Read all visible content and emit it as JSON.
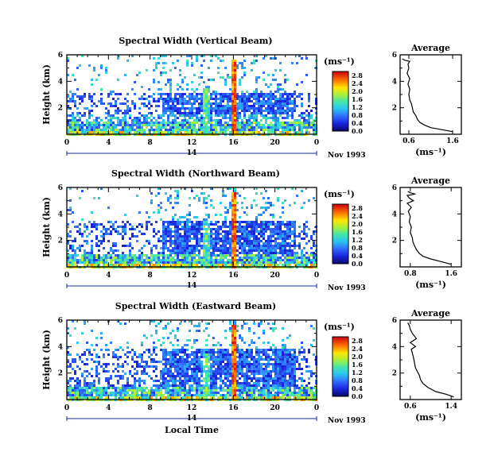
{
  "chart_data": [
    {
      "type": "heatmap",
      "title": "Spectral Width (Vertical Beam)",
      "ylabel": "Height (km)",
      "xlim": [
        0,
        24
      ],
      "ylim": [
        0,
        6
      ],
      "x_ticks": [
        "0",
        "4",
        "8",
        "12",
        "16",
        "20",
        "0"
      ],
      "y_ticks": [
        "2",
        "4",
        "6"
      ],
      "date_day": "14",
      "date_label": "Nov 1993",
      "colorbar": {
        "unit": "(ms⁻¹)",
        "ticks": [
          "0.0",
          "0.4",
          "0.8",
          "1.2",
          "1.6",
          "2.0",
          "2.4",
          "2.8"
        ],
        "range": [
          0.0,
          3.0
        ]
      },
      "features": {
        "spike_time_hr": 15.9,
        "noise_top_km": 1.1,
        "cloud_band_km": [
          1.6,
          3.2
        ]
      }
    },
    {
      "type": "heatmap",
      "title": "Spectral Width (Northward Beam)",
      "ylabel": "Height (km)",
      "xlim": [
        0,
        24
      ],
      "ylim": [
        0,
        6
      ],
      "x_ticks": [
        "0",
        "4",
        "8",
        "12",
        "16",
        "20",
        "0"
      ],
      "y_ticks": [
        "2",
        "4",
        "6"
      ],
      "date_day": "14",
      "date_label": "Nov 1993",
      "colorbar": {
        "unit": "(ms⁻¹)",
        "ticks": [
          "0.0",
          "0.4",
          "0.8",
          "1.2",
          "1.6",
          "2.0",
          "2.4",
          "2.8"
        ],
        "range": [
          0.0,
          3.0
        ]
      },
      "features": {
        "spike_time_hr": 15.9,
        "noise_top_km": 1.0,
        "cloud_band_km": [
          0.6,
          3.6
        ]
      }
    },
    {
      "type": "heatmap",
      "title": "Spectral Width (Eastward Beam)",
      "ylabel": "Height (km)",
      "xlabel": "Local Time",
      "xlim": [
        0,
        24
      ],
      "ylim": [
        0,
        6
      ],
      "x_ticks": [
        "0",
        "4",
        "8",
        "12",
        "16",
        "20",
        "0"
      ],
      "y_ticks": [
        "2",
        "4",
        "6"
      ],
      "date_day": "14",
      "date_label": "Nov 1993",
      "colorbar": {
        "unit": "(ms⁻¹)",
        "ticks": [
          "0.0",
          "0.4",
          "0.8",
          "1.2",
          "1.6",
          "2.0",
          "2.4",
          "2.8"
        ],
        "range": [
          0.0,
          3.0
        ]
      },
      "features": {
        "spike_time_hr": 15.9,
        "noise_top_km": 1.0,
        "cloud_band_km": [
          0.6,
          3.9
        ]
      }
    },
    {
      "type": "line",
      "title": "Average",
      "xlabel": "(ms⁻¹)",
      "x_ticks": [
        "0.6",
        "1.6"
      ],
      "xlim": [
        0.4,
        1.8
      ],
      "y_ticks": [
        "2",
        "4",
        "6"
      ],
      "ylim": [
        0,
        6
      ],
      "series": [
        {
          "width": [
            1.6,
            1.35,
            1.1,
            0.95,
            0.85,
            0.8,
            0.76,
            0.7,
            0.68,
            0.66,
            0.62,
            0.6,
            0.62,
            0.58,
            0.62,
            0.56,
            0.6,
            0.58,
            0.62,
            0.5,
            0.45
          ],
          "height": [
            0.2,
            0.35,
            0.5,
            0.7,
            0.9,
            1.1,
            1.4,
            1.7,
            2.0,
            2.3,
            2.6,
            3.0,
            3.4,
            3.8,
            4.2,
            4.6,
            5.0,
            5.3,
            5.5,
            5.6,
            5.7
          ]
        }
      ]
    },
    {
      "type": "line",
      "title": "Average",
      "xlabel": "(ms⁻¹)",
      "x_ticks": [
        "0.8",
        "1.6"
      ],
      "xlim": [
        0.6,
        1.8
      ],
      "y_ticks": [
        "2",
        "4",
        "6"
      ],
      "ylim": [
        0,
        6
      ],
      "series": [
        {
          "width": [
            1.6,
            1.4,
            1.2,
            1.05,
            0.98,
            0.92,
            0.88,
            0.85,
            0.84,
            0.8,
            0.82,
            0.78,
            0.8,
            0.76,
            0.82,
            0.74,
            0.86,
            0.78,
            0.74,
            0.9,
            0.8,
            0.75
          ],
          "height": [
            0.2,
            0.4,
            0.6,
            0.8,
            1.0,
            1.3,
            1.6,
            1.9,
            2.2,
            2.6,
            3.0,
            3.4,
            3.8,
            4.2,
            4.5,
            4.8,
            5.0,
            5.2,
            5.4,
            5.5,
            5.6,
            5.7
          ]
        }
      ]
    },
    {
      "type": "line",
      "title": "Average",
      "xlabel": "(ms⁻¹)",
      "x_ticks": [
        "0.6",
        "1.4"
      ],
      "xlim": [
        0.4,
        1.6
      ],
      "y_ticks": [
        "2",
        "4",
        "6"
      ],
      "ylim": [
        0,
        6
      ],
      "series": [
        {
          "width": [
            1.45,
            1.3,
            1.1,
            0.95,
            0.85,
            0.8,
            0.78,
            0.74,
            0.7,
            0.68,
            0.66,
            0.64,
            0.62,
            0.7,
            0.6,
            0.72,
            0.64,
            0.6,
            0.58,
            0.55
          ],
          "height": [
            0.2,
            0.4,
            0.6,
            0.9,
            1.2,
            1.5,
            1.8,
            2.1,
            2.4,
            2.8,
            3.2,
            3.5,
            3.8,
            4.0,
            4.3,
            4.6,
            5.0,
            5.3,
            5.6,
            5.8
          ]
        }
      ]
    }
  ]
}
